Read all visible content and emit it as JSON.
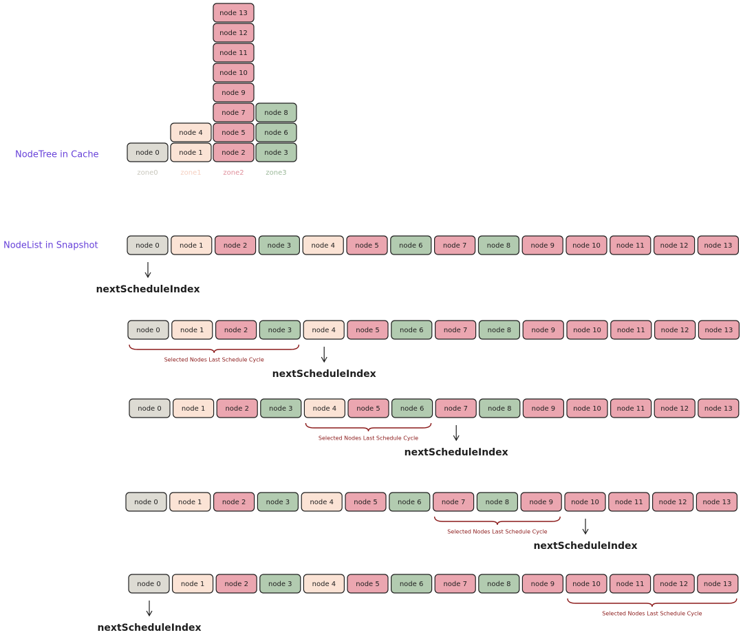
{
  "tree": {
    "label": "NodeTree in Cache",
    "zones": [
      {
        "label": "zone0",
        "color": "#dddbd3",
        "nodes": [
          "node 0"
        ]
      },
      {
        "label": "zone1",
        "color": "#fbe3d5",
        "nodes": [
          "node 1",
          "node 4"
        ]
      },
      {
        "label": "zone2",
        "color": "#eba6b0",
        "nodes": [
          "node 2",
          "node 5",
          "node 7",
          "node 9",
          "node 10",
          "node 11",
          "node 12",
          "node 13"
        ]
      },
      {
        "label": "zone3",
        "color": "#b2cbb0",
        "nodes": [
          "node 3",
          "node 6",
          "node 8"
        ]
      }
    ]
  },
  "list": {
    "label": "NodeList in Snapshot",
    "rows": [
      {
        "nodes": [
          "node 0",
          "node 1",
          "node 2",
          "node 3",
          "node 4",
          "node 5",
          "node 6",
          "node 7",
          "node 8",
          "node 9",
          "node 10",
          "node 11",
          "node 12",
          "node 13"
        ],
        "pointer_label": "nextScheduleIndex"
      },
      {
        "nodes": [
          "node 0",
          "node 1",
          "node 2",
          "node 3",
          "node 4",
          "node 5",
          "node 6",
          "node 7",
          "node 8",
          "node 9",
          "node 10",
          "node 11",
          "node 12",
          "node 13"
        ],
        "pointer_label": "nextScheduleIndex",
        "selected_caption": "Selected Nodes Last Schedule Cycle"
      },
      {
        "nodes": [
          "node 0",
          "node 1",
          "node 2",
          "node 3",
          "node 4",
          "node 5",
          "node 6",
          "node 7",
          "node 8",
          "node 9",
          "node 10",
          "node 11",
          "node 12",
          "node 13"
        ],
        "pointer_label": "nextScheduleIndex",
        "selected_caption": "Selected Nodes Last Schedule Cycle"
      },
      {
        "nodes": [
          "node 0",
          "node 1",
          "node 2",
          "node 3",
          "node 4",
          "node 5",
          "node 6",
          "node 7",
          "node 8",
          "node 9",
          "node 10",
          "node 11",
          "node 12",
          "node 13"
        ],
        "pointer_label": "nextScheduleIndex",
        "selected_caption": "Selected Nodes Last Schedule Cycle"
      },
      {
        "nodes": [
          "node 0",
          "node 1",
          "node 2",
          "node 3",
          "node 4",
          "node 5",
          "node 6",
          "node 7",
          "node 8",
          "node 9",
          "node 10",
          "node 11",
          "node 12",
          "node 13"
        ],
        "pointer_label": "nextScheduleIndex",
        "selected_caption": "Selected Nodes Last Schedule Cycle"
      }
    ]
  }
}
